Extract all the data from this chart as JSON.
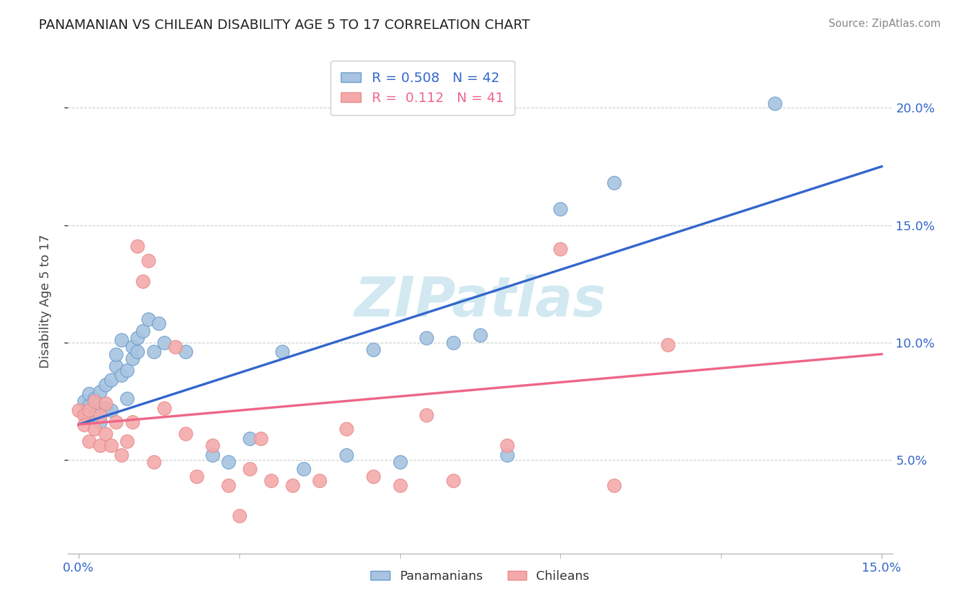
{
  "title": "PANAMANIAN VS CHILEAN DISABILITY AGE 5 TO 17 CORRELATION CHART",
  "source": "Source: ZipAtlas.com",
  "ylabel": "Disability Age 5 to 17",
  "xlim": [
    -0.002,
    0.152
  ],
  "ylim": [
    0.01,
    0.225
  ],
  "xticks_major": [
    0.0,
    0.15
  ],
  "xticks_minor": [
    0.03,
    0.06,
    0.09,
    0.12
  ],
  "yticks_right": [
    0.05,
    0.1,
    0.15,
    0.2
  ],
  "blue_R": 0.508,
  "blue_N": 42,
  "pink_R": 0.112,
  "pink_N": 41,
  "blue_color": "#A8C4E0",
  "pink_color": "#F4AAAA",
  "blue_edge_color": "#6699CC",
  "pink_edge_color": "#E88888",
  "blue_line_color": "#3366CC",
  "pink_line_color": "#EE6688",
  "watermark": "ZIPatlas",
  "blue_scatter": [
    [
      0.001,
      0.075
    ],
    [
      0.002,
      0.073
    ],
    [
      0.002,
      0.078
    ],
    [
      0.003,
      0.069
    ],
    [
      0.003,
      0.076
    ],
    [
      0.004,
      0.066
    ],
    [
      0.004,
      0.079
    ],
    [
      0.005,
      0.072
    ],
    [
      0.005,
      0.082
    ],
    [
      0.006,
      0.071
    ],
    [
      0.006,
      0.084
    ],
    [
      0.007,
      0.09
    ],
    [
      0.007,
      0.095
    ],
    [
      0.008,
      0.086
    ],
    [
      0.008,
      0.101
    ],
    [
      0.009,
      0.088
    ],
    [
      0.009,
      0.076
    ],
    [
      0.01,
      0.093
    ],
    [
      0.01,
      0.098
    ],
    [
      0.011,
      0.102
    ],
    [
      0.011,
      0.096
    ],
    [
      0.012,
      0.105
    ],
    [
      0.013,
      0.11
    ],
    [
      0.014,
      0.096
    ],
    [
      0.015,
      0.108
    ],
    [
      0.016,
      0.1
    ],
    [
      0.02,
      0.096
    ],
    [
      0.025,
      0.052
    ],
    [
      0.028,
      0.049
    ],
    [
      0.032,
      0.059
    ],
    [
      0.038,
      0.096
    ],
    [
      0.042,
      0.046
    ],
    [
      0.05,
      0.052
    ],
    [
      0.055,
      0.097
    ],
    [
      0.06,
      0.049
    ],
    [
      0.065,
      0.102
    ],
    [
      0.07,
      0.1
    ],
    [
      0.075,
      0.103
    ],
    [
      0.08,
      0.052
    ],
    [
      0.09,
      0.157
    ],
    [
      0.1,
      0.168
    ],
    [
      0.13,
      0.202
    ]
  ],
  "pink_scatter": [
    [
      0.0,
      0.071
    ],
    [
      0.001,
      0.069
    ],
    [
      0.001,
      0.065
    ],
    [
      0.002,
      0.071
    ],
    [
      0.002,
      0.058
    ],
    [
      0.003,
      0.075
    ],
    [
      0.003,
      0.063
    ],
    [
      0.004,
      0.069
    ],
    [
      0.004,
      0.056
    ],
    [
      0.005,
      0.074
    ],
    [
      0.005,
      0.061
    ],
    [
      0.006,
      0.056
    ],
    [
      0.007,
      0.066
    ],
    [
      0.008,
      0.052
    ],
    [
      0.009,
      0.058
    ],
    [
      0.01,
      0.066
    ],
    [
      0.011,
      0.141
    ],
    [
      0.012,
      0.126
    ],
    [
      0.013,
      0.135
    ],
    [
      0.014,
      0.049
    ],
    [
      0.016,
      0.072
    ],
    [
      0.018,
      0.098
    ],
    [
      0.02,
      0.061
    ],
    [
      0.022,
      0.043
    ],
    [
      0.025,
      0.056
    ],
    [
      0.028,
      0.039
    ],
    [
      0.03,
      0.026
    ],
    [
      0.032,
      0.046
    ],
    [
      0.034,
      0.059
    ],
    [
      0.036,
      0.041
    ],
    [
      0.04,
      0.039
    ],
    [
      0.045,
      0.041
    ],
    [
      0.05,
      0.063
    ],
    [
      0.055,
      0.043
    ],
    [
      0.06,
      0.039
    ],
    [
      0.065,
      0.069
    ],
    [
      0.07,
      0.041
    ],
    [
      0.08,
      0.056
    ],
    [
      0.09,
      0.14
    ],
    [
      0.1,
      0.039
    ],
    [
      0.11,
      0.099
    ]
  ],
  "blue_line_x": [
    0.0,
    0.15
  ],
  "blue_line_y": [
    0.065,
    0.175
  ],
  "pink_line_x": [
    0.0,
    0.15
  ],
  "pink_line_y": [
    0.065,
    0.095
  ],
  "grid_color": "#CCCCCC",
  "bg_color": "#FFFFFF"
}
